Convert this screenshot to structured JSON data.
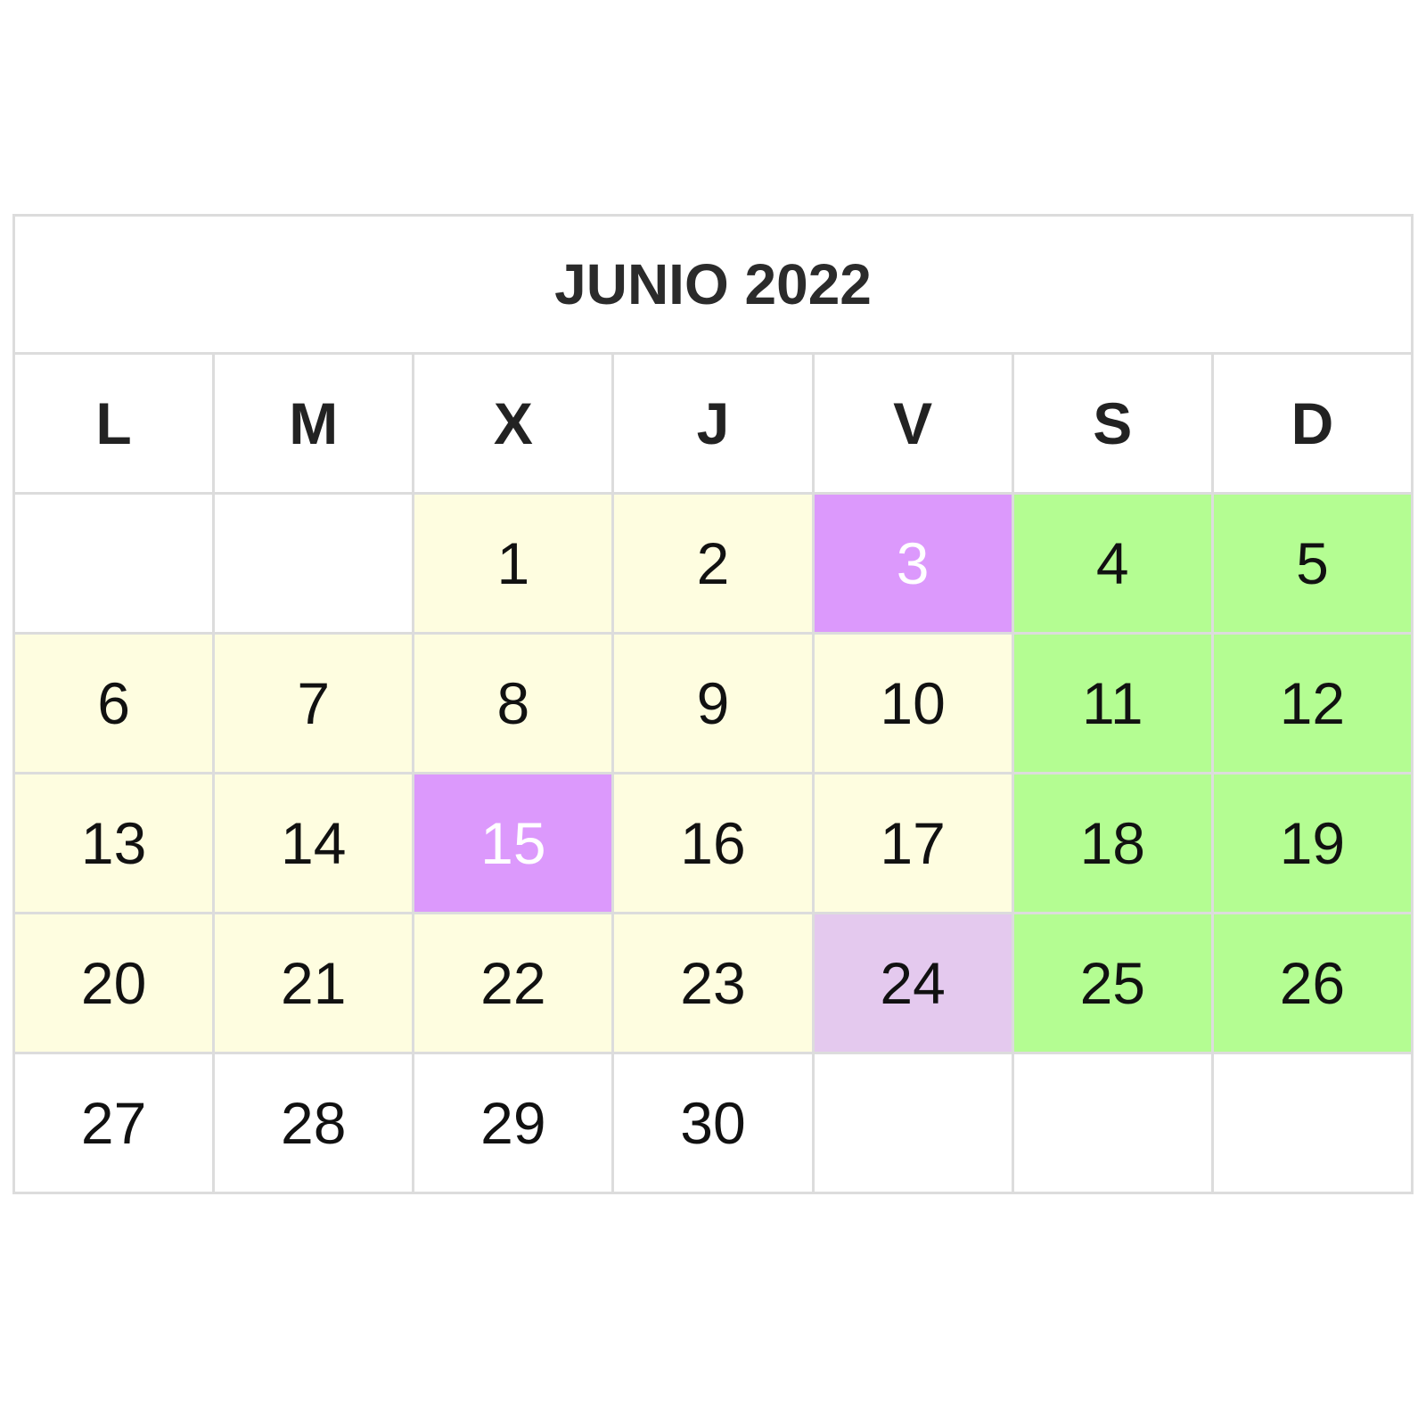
{
  "calendar": {
    "title": "JUNIO 2022",
    "weekdays": [
      "L",
      "M",
      "X",
      "J",
      "V",
      "S",
      "D"
    ],
    "colors": {
      "school": "#fefde0",
      "weekend": "#b4fd92",
      "holiday": "#dc99fc",
      "special": "#e4c9ee",
      "normal": "#ffffff",
      "empty": "#ffffff",
      "border": "#dcdcdc"
    },
    "weeks": [
      [
        {
          "day": "",
          "type": "empty"
        },
        {
          "day": "",
          "type": "empty"
        },
        {
          "day": "1",
          "type": "school"
        },
        {
          "day": "2",
          "type": "school"
        },
        {
          "day": "3",
          "type": "holiday"
        },
        {
          "day": "4",
          "type": "weekend"
        },
        {
          "day": "5",
          "type": "weekend"
        }
      ],
      [
        {
          "day": "6",
          "type": "school"
        },
        {
          "day": "7",
          "type": "school"
        },
        {
          "day": "8",
          "type": "school"
        },
        {
          "day": "9",
          "type": "school"
        },
        {
          "day": "10",
          "type": "school"
        },
        {
          "day": "11",
          "type": "weekend"
        },
        {
          "day": "12",
          "type": "weekend"
        }
      ],
      [
        {
          "day": "13",
          "type": "school"
        },
        {
          "day": "14",
          "type": "school"
        },
        {
          "day": "15",
          "type": "holiday"
        },
        {
          "day": "16",
          "type": "school"
        },
        {
          "day": "17",
          "type": "school"
        },
        {
          "day": "18",
          "type": "weekend"
        },
        {
          "day": "19",
          "type": "weekend"
        }
      ],
      [
        {
          "day": "20",
          "type": "school"
        },
        {
          "day": "21",
          "type": "school"
        },
        {
          "day": "22",
          "type": "school"
        },
        {
          "day": "23",
          "type": "school"
        },
        {
          "day": "24",
          "type": "special"
        },
        {
          "day": "25",
          "type": "weekend"
        },
        {
          "day": "26",
          "type": "weekend"
        }
      ],
      [
        {
          "day": "27",
          "type": "normal"
        },
        {
          "day": "28",
          "type": "normal"
        },
        {
          "day": "29",
          "type": "normal"
        },
        {
          "day": "30",
          "type": "normal"
        },
        {
          "day": "",
          "type": "empty"
        },
        {
          "day": "",
          "type": "empty"
        },
        {
          "day": "",
          "type": "empty"
        }
      ]
    ]
  }
}
